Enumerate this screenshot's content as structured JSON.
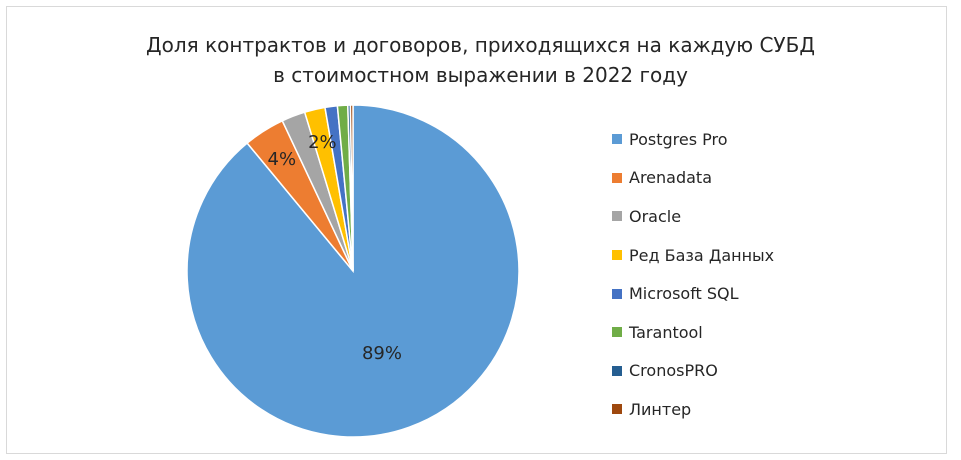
{
  "chart_data": {
    "type": "pie",
    "title_lines": [
      "Доля контрактов и договоров, приходящихся на каждую СУБД",
      "в стоимостном выражении в 2022 году"
    ],
    "slices": [
      {
        "name": "Postgres Pro",
        "value": 89.0,
        "label": "89%",
        "color": "#5b9bd5"
      },
      {
        "name": "Arenadata",
        "value": 4.0,
        "label": "4%",
        "color": "#ed7d31"
      },
      {
        "name": "Oracle",
        "value": 2.3,
        "label": "",
        "color": "#a5a5a5"
      },
      {
        "name": "Ред База Данных",
        "value": 2.0,
        "label": "2%",
        "color": "#ffc000"
      },
      {
        "name": "Microsoft SQL",
        "value": 1.2,
        "label": "",
        "color": "#4472c4"
      },
      {
        "name": "Tarantool",
        "value": 1.0,
        "label": "",
        "color": "#70ad47"
      },
      {
        "name": "CronosPRO",
        "value": 0.25,
        "label": "",
        "color": "#255e91"
      },
      {
        "name": "Линтер",
        "value": 0.25,
        "label": "",
        "color": "#9e480e"
      }
    ],
    "legend_position": "right",
    "start_angle": "12 o'clock",
    "direction": "clockwise"
  }
}
